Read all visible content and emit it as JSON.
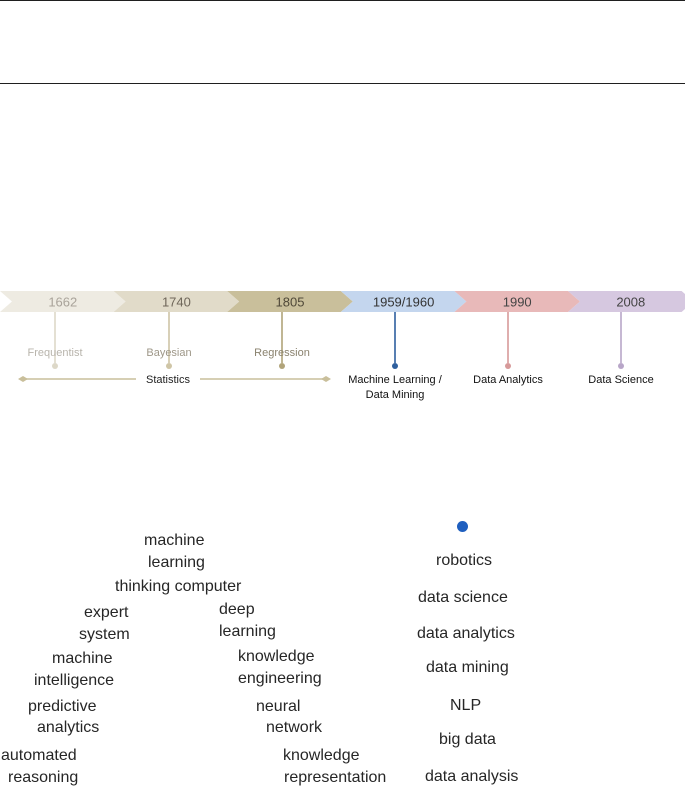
{
  "timeline": {
    "phases": [
      {
        "year": "1662",
        "label": "Frequentist",
        "fill": "#eeebe2",
        "year_color": "#a9a39a",
        "label_color": "#b8b4ac",
        "stem_color": "#ddd8c8"
      },
      {
        "year": "1740",
        "label": "Bayesian",
        "fill": "#e1dbc9",
        "year_color": "#6e6659",
        "label_color": "#9e9788",
        "stem_color": "#cfc5a6"
      },
      {
        "year": "1805",
        "label": "Regression",
        "fill": "#c9bf9b",
        "year_color": "#4f4838",
        "label_color": "#8a826e",
        "stem_color": "#b1a47a"
      },
      {
        "year": "1959/1960",
        "label": "Machine Learning /",
        "label2": "Data Mining",
        "fill": "#c4d6ee",
        "year_color": "#333333",
        "label_color": "#111111",
        "stem_color": "#2e5f9e"
      },
      {
        "year": "1990",
        "label": "Data Analytics",
        "fill": "#e8b9b9",
        "year_color": "#444444",
        "label_color": "#111111",
        "stem_color": "#d79a9a"
      },
      {
        "year": "2008",
        "label": "Data Science",
        "fill": "#d6c8e0",
        "year_color": "#444444",
        "label_color": "#111111",
        "stem_color": "#b8a6c8"
      }
    ],
    "span_label": "Statistics",
    "span_color": "#c9bf9b"
  },
  "left_terms": [
    "machine",
    "learning",
    "thinking computer",
    "expert",
    "system",
    "deep",
    "learning",
    "machine",
    "intelligence",
    "knowledge",
    "engineering",
    "predictive",
    "analytics",
    "neural",
    "network",
    "automated",
    "reasoning",
    "knowledge",
    "representation"
  ],
  "right_terms": [
    "robotics",
    "data science",
    "data analytics",
    "data mining",
    "NLP",
    "big data",
    "data analysis"
  ],
  "dot_color": "#1f5fbf"
}
